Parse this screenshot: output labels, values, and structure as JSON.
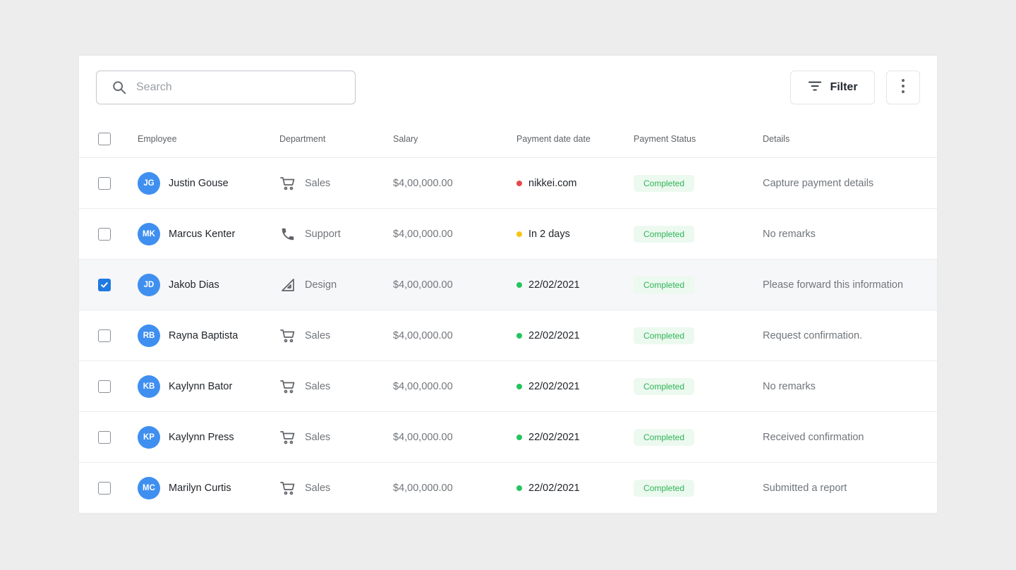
{
  "search": {
    "placeholder": "Search"
  },
  "toolbar": {
    "filter_label": "Filter"
  },
  "columns": {
    "employee": "Employee",
    "department": "Department",
    "salary": "Salary",
    "payment_date": "Payment date date",
    "payment_status": "Payment Status",
    "details": "Details"
  },
  "colors": {
    "accent": "#3f8ff0",
    "checkbox_checked": "#1f7ae0",
    "status_red": "#e5484d",
    "status_yellow": "#f5c518",
    "status_green": "#22c55e",
    "badge_bg": "#ecf9ef",
    "badge_text": "#2fb457"
  },
  "rows": [
    {
      "checked": false,
      "initials": "JG",
      "name": "Justin Gouse",
      "dept_icon": "cart-icon",
      "department": "Sales",
      "salary": "$4,00,000.00",
      "dot": "red",
      "date": "nikkei.com",
      "status": "Completed",
      "details": "Capture payment details"
    },
    {
      "checked": false,
      "initials": "MK",
      "name": "Marcus Kenter",
      "dept_icon": "phone-icon",
      "department": "Support",
      "salary": "$4,00,000.00",
      "dot": "yellow",
      "date": "In 2 days",
      "status": "Completed",
      "details": "No remarks"
    },
    {
      "checked": true,
      "initials": "JD",
      "name": "Jakob Dias",
      "dept_icon": "set-square-icon",
      "department": "Design",
      "salary": "$4,00,000.00",
      "dot": "green",
      "date": "22/02/2021",
      "status": "Completed",
      "details": "Please forward this information"
    },
    {
      "checked": false,
      "initials": "RB",
      "name": "Rayna Baptista",
      "dept_icon": "cart-icon",
      "department": "Sales",
      "salary": "$4,00,000.00",
      "dot": "green",
      "date": "22/02/2021",
      "status": "Completed",
      "details": "Request confirmation."
    },
    {
      "checked": false,
      "initials": "KB",
      "name": "Kaylynn Bator",
      "dept_icon": "cart-icon",
      "department": "Sales",
      "salary": "$4,00,000.00",
      "dot": "green",
      "date": "22/02/2021",
      "status": "Completed",
      "details": "No remarks"
    },
    {
      "checked": false,
      "initials": "KP",
      "name": "Kaylynn Press",
      "dept_icon": "cart-icon",
      "department": "Sales",
      "salary": "$4,00,000.00",
      "dot": "green",
      "date": "22/02/2021",
      "status": "Completed",
      "details": "Received confirmation"
    },
    {
      "checked": false,
      "initials": "MC",
      "name": "Marilyn Curtis",
      "dept_icon": "cart-icon",
      "department": "Sales",
      "salary": "$4,00,000.00",
      "dot": "green",
      "date": "22/02/2021",
      "status": "Completed",
      "details": "Submitted a report"
    }
  ]
}
